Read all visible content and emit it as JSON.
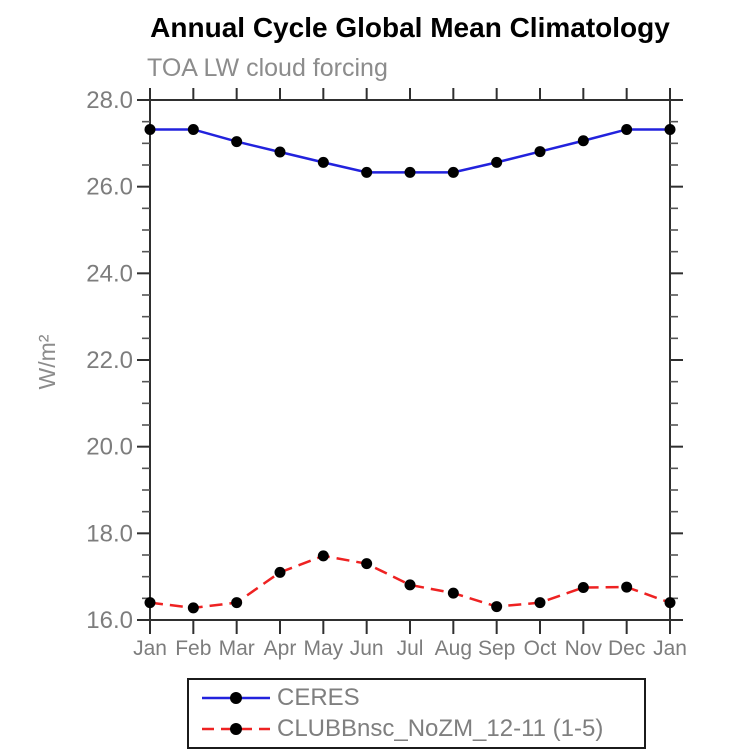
{
  "title": "Annual Cycle Global Mean Climatology",
  "subtitle": "TOA LW cloud forcing",
  "chart_data": {
    "type": "line",
    "title": "Annual Cycle Global Mean Climatology",
    "subtitle": "TOA LW cloud forcing",
    "xlabel": "",
    "ylabel": "W/m²",
    "categories": [
      "Jan",
      "Feb",
      "Mar",
      "Apr",
      "May",
      "Jun",
      "Jul",
      "Aug",
      "Sep",
      "Oct",
      "Nov",
      "Dec",
      "Jan"
    ],
    "ylim": [
      16.0,
      28.0
    ],
    "ytick_interval": 2.0,
    "ytick_labels": [
      "16.0",
      "18.0",
      "20.0",
      "22.0",
      "24.0",
      "26.0",
      "28.0"
    ],
    "minor_tick_interval": 0.5,
    "grid": false,
    "legend_position": "bottom",
    "series": [
      {
        "name": "CERES",
        "color": "#2222dd",
        "line_style": "solid",
        "marker": "circle",
        "marker_color": "#000000",
        "values": [
          27.32,
          27.32,
          27.04,
          26.8,
          26.56,
          26.33,
          26.33,
          26.33,
          26.56,
          26.81,
          27.06,
          27.32,
          27.32
        ]
      },
      {
        "name": "CLUBBnsc_NoZM_12-11 (1-5)",
        "color": "#ee2222",
        "line_style": "dashed",
        "marker": "circle",
        "marker_color": "#000000",
        "values": [
          16.4,
          16.28,
          16.4,
          17.1,
          17.48,
          17.3,
          16.81,
          16.62,
          16.31,
          16.4,
          16.75,
          16.76,
          16.4
        ]
      }
    ],
    "colors": {
      "axis": "#2f2f2f",
      "tick_label": "#7d7d7d",
      "axis_label": "#8c8c8c"
    }
  }
}
